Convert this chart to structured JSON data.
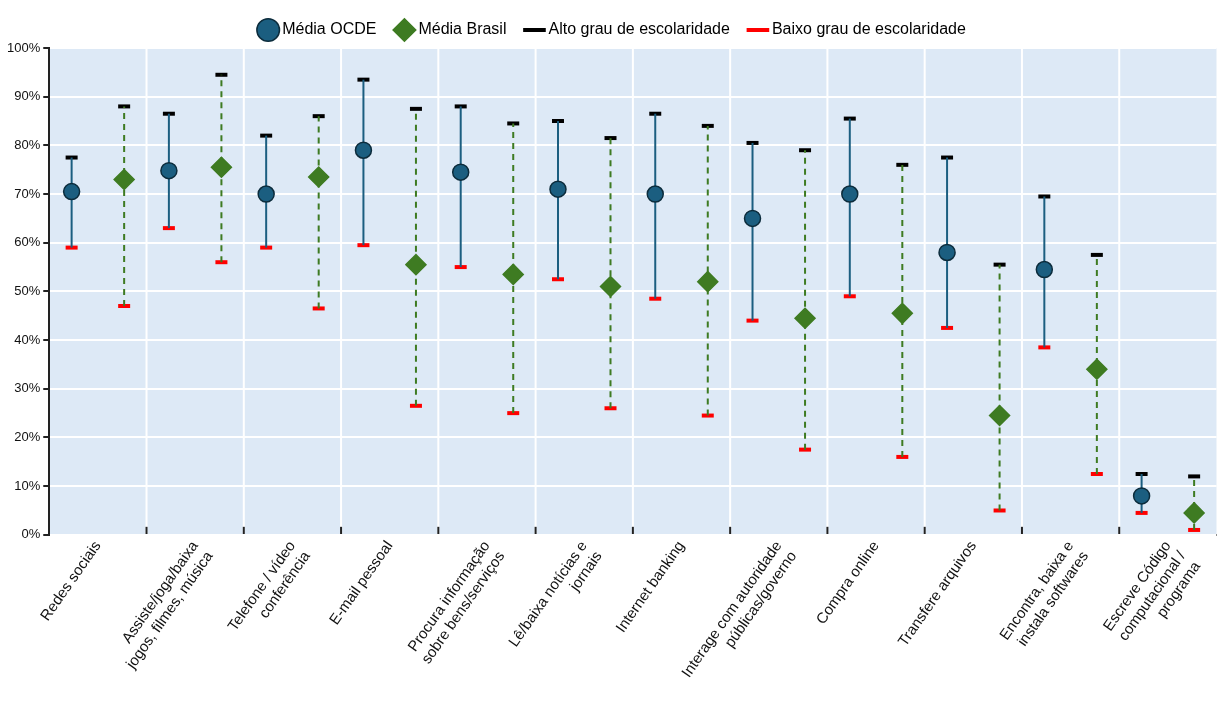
{
  "chart_data": {
    "type": "scatter",
    "categories": [
      "Redes sociais",
      "Assiste/joga/baixa jogos, filmes, música",
      "Telefone / vídeo conferência",
      "E-mail pessoal",
      "Procura informação sobre bens/serviços",
      "Lê/baixa notícias e jornais",
      "Internet banking",
      "Interage com autoridade públicas/governo",
      "Compra online",
      "Transfere arquivos",
      "Encontra, baixa e instala softwares",
      "Escreve Código computacional / programa"
    ],
    "series": [
      {
        "name": "Média OCDE",
        "color": "#1b5e80",
        "marker": "circle",
        "line_style": "solid",
        "values": [
          70.5,
          74.8,
          70,
          79,
          74.5,
          71,
          70,
          65,
          70,
          58,
          54.5,
          8
        ],
        "errors": [
          [
            59,
            77.5
          ],
          [
            63,
            86.5
          ],
          [
            59,
            82
          ],
          [
            59.5,
            93.5
          ],
          [
            55,
            88
          ],
          [
            52.5,
            85
          ],
          [
            48.5,
            86.5
          ],
          [
            44,
            80.5
          ],
          [
            49,
            85.5
          ],
          [
            42.5,
            77.5
          ],
          [
            38.5,
            69.5
          ],
          [
            4.5,
            12.5
          ]
        ]
      },
      {
        "name": "Média Brasil",
        "color": "#3e7b22",
        "marker": "diamond",
        "line_style": "dashed",
        "values": [
          73,
          75.5,
          73.5,
          55.5,
          53.5,
          51,
          52,
          44.5,
          45.5,
          24.5,
          34,
          4.5
        ],
        "errors": [
          [
            47,
            88
          ],
          [
            56,
            94.5
          ],
          [
            46.5,
            86
          ],
          [
            26.5,
            87.5
          ],
          [
            25,
            84.5
          ],
          [
            26,
            81.5
          ],
          [
            24.5,
            84
          ],
          [
            17.5,
            79
          ],
          [
            16,
            76
          ],
          [
            5,
            55.5
          ],
          [
            12.5,
            57.5
          ],
          [
            1,
            12
          ]
        ]
      },
      {
        "name": "Alto grau de escolaridade",
        "color": "#000000",
        "values": [
          null,
          null,
          null,
          null,
          null,
          null,
          null,
          null,
          null,
          null,
          null,
          null
        ]
      },
      {
        "name": "Baixo grau de escolaridade",
        "color": "#ff0000",
        "values": [
          null,
          null,
          null,
          null,
          null,
          null,
          null,
          null,
          null,
          null,
          null,
          null
        ]
      }
    ],
    "ylim": [
      0,
      100
    ],
    "yticks": [
      {
        "value": 0,
        "label": "0%"
      },
      {
        "value": 10,
        "label": "10%"
      },
      {
        "value": 20,
        "label": "20%"
      },
      {
        "value": 30,
        "label": "30%"
      },
      {
        "value": 40,
        "label": "40%"
      },
      {
        "value": 50,
        "label": "50%"
      },
      {
        "value": 60,
        "label": "60%"
      },
      {
        "value": 70,
        "label": "70%"
      },
      {
        "value": 80,
        "label": "80%"
      },
      {
        "value": 90,
        "label": "90%"
      },
      {
        "value": 100,
        "label": "100%"
      }
    ],
    "grid": true,
    "legend": "top"
  }
}
